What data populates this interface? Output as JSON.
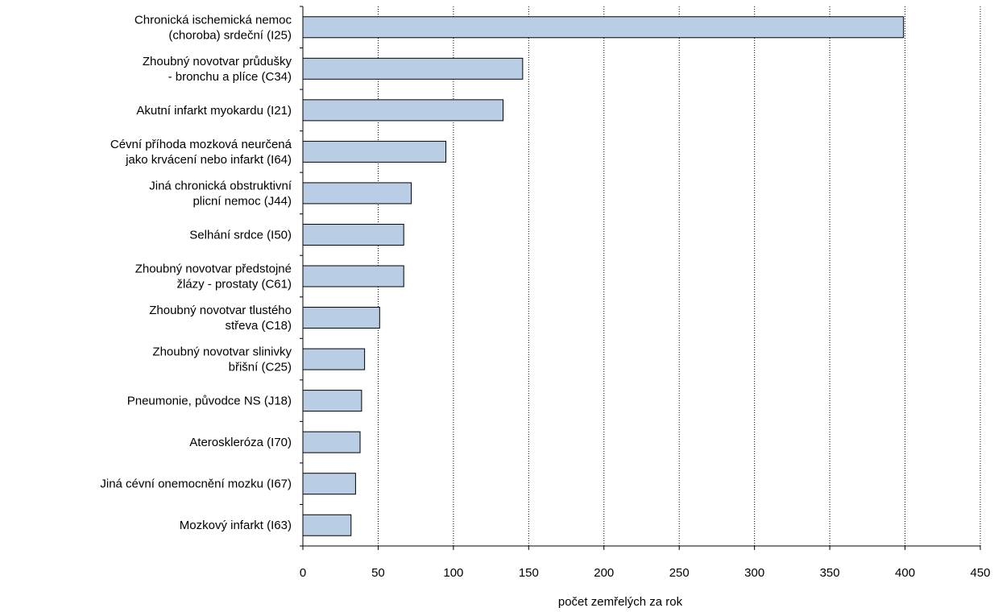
{
  "chart_data": {
    "type": "bar",
    "orientation": "horizontal",
    "title": "",
    "xlabel": "počet zemřelých za rok",
    "ylabel": "",
    "xlim": [
      0,
      450
    ],
    "x_ticks": [
      0,
      50,
      100,
      150,
      200,
      250,
      300,
      350,
      400,
      450
    ],
    "grid": "vertical dotted",
    "legend": "none",
    "categories": [
      [
        "Chronická ischemická nemoc",
        "(choroba) srdeční (I25)"
      ],
      [
        "Zhoubný novotvar průdušky",
        "- bronchu a plíce (C34)"
      ],
      [
        "Akutní infarkt myokardu (I21)"
      ],
      [
        "Cévní příhoda mozková neurčená",
        "jako krvácení nebo infarkt (I64)"
      ],
      [
        "Jiná chronická obstruktivní",
        "plicní nemoc (J44)"
      ],
      [
        "Selhání srdce (I50)"
      ],
      [
        "Zhoubný novotvar předstojné",
        "žlázy - prostaty (C61)"
      ],
      [
        "Zhoubný novotvar tlustého",
        "střeva (C18)"
      ],
      [
        "Zhoubný novotvar slinivky",
        "břišní (C25)"
      ],
      [
        "Pneumonie, původce NS (J18)"
      ],
      [
        "Ateroskleróza (I70)"
      ],
      [
        "Jiná cévní onemocnění mozku (I67)"
      ],
      [
        "Mozkový infarkt (I63)"
      ]
    ],
    "values": [
      399,
      146,
      133,
      95,
      72,
      67,
      67,
      51,
      41,
      39,
      38,
      35,
      32
    ],
    "colors": {
      "bar_fill": "#b9cde5",
      "bar_stroke": "#000000",
      "grid": "#000000",
      "axis": "#000000"
    }
  }
}
